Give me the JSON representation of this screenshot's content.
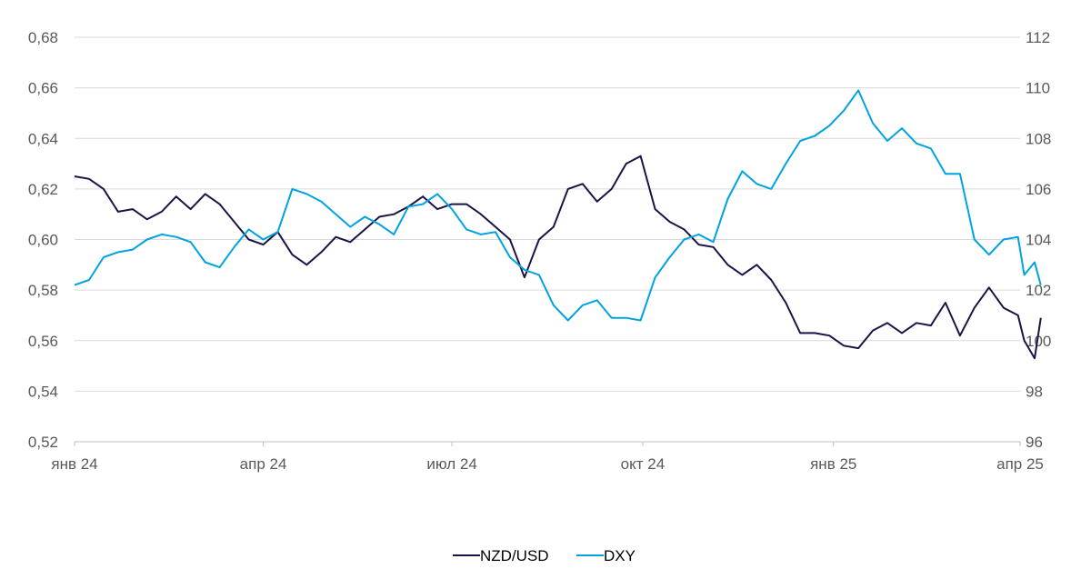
{
  "chart_data": {
    "type": "line",
    "title": "",
    "xlabel": "",
    "ylabel": "",
    "y2label": "",
    "grid": true,
    "legend_position": "bottom-center",
    "x_range": [
      "2024-01-01",
      "2025-04-01"
    ],
    "x_ticks": [
      {
        "date": "2024-01-01",
        "label": "янв 24"
      },
      {
        "date": "2024-04-01",
        "label": "апр 24"
      },
      {
        "date": "2024-07-01",
        "label": "июл 24"
      },
      {
        "date": "2024-10-01",
        "label": "окт 24"
      },
      {
        "date": "2025-01-01",
        "label": "янв 25"
      },
      {
        "date": "2025-04-01",
        "label": "апр 25"
      }
    ],
    "y_left": {
      "min": 0.52,
      "max": 0.68,
      "ticks": [
        "0,52",
        "0,54",
        "0,56",
        "0,58",
        "0,60",
        "0,62",
        "0,64",
        "0,66",
        "0,68"
      ]
    },
    "y_right": {
      "min": 96,
      "max": 112,
      "ticks": [
        "96",
        "98",
        "100",
        "102",
        "104",
        "106",
        "108",
        "110",
        "112"
      ]
    },
    "series": [
      {
        "name": "NZD/USD",
        "axis": "left",
        "color": "#1a1446",
        "points": [
          [
            "2024-01-01",
            0.625
          ],
          [
            "2024-01-08",
            0.624
          ],
          [
            "2024-01-15",
            0.62
          ],
          [
            "2024-01-22",
            0.611
          ],
          [
            "2024-01-29",
            0.612
          ],
          [
            "2024-02-05",
            0.608
          ],
          [
            "2024-02-12",
            0.611
          ],
          [
            "2024-02-19",
            0.617
          ],
          [
            "2024-02-26",
            0.612
          ],
          [
            "2024-03-04",
            0.618
          ],
          [
            "2024-03-11",
            0.614
          ],
          [
            "2024-03-18",
            0.607
          ],
          [
            "2024-03-25",
            0.6
          ],
          [
            "2024-04-01",
            0.598
          ],
          [
            "2024-04-08",
            0.603
          ],
          [
            "2024-04-15",
            0.594
          ],
          [
            "2024-04-22",
            0.59
          ],
          [
            "2024-04-29",
            0.595
          ],
          [
            "2024-05-06",
            0.601
          ],
          [
            "2024-05-13",
            0.599
          ],
          [
            "2024-05-20",
            0.604
          ],
          [
            "2024-05-27",
            0.609
          ],
          [
            "2024-06-03",
            0.61
          ],
          [
            "2024-06-10",
            0.613
          ],
          [
            "2024-06-17",
            0.617
          ],
          [
            "2024-06-24",
            0.612
          ],
          [
            "2024-07-01",
            0.614
          ],
          [
            "2024-07-08",
            0.614
          ],
          [
            "2024-07-15",
            0.61
          ],
          [
            "2024-07-22",
            0.605
          ],
          [
            "2024-07-29",
            0.6
          ],
          [
            "2024-08-05",
            0.585
          ],
          [
            "2024-08-12",
            0.6
          ],
          [
            "2024-08-19",
            0.605
          ],
          [
            "2024-08-26",
            0.62
          ],
          [
            "2024-09-02",
            0.622
          ],
          [
            "2024-09-09",
            0.615
          ],
          [
            "2024-09-16",
            0.62
          ],
          [
            "2024-09-23",
            0.63
          ],
          [
            "2024-09-30",
            0.633
          ],
          [
            "2024-10-07",
            0.612
          ],
          [
            "2024-10-14",
            0.607
          ],
          [
            "2024-10-21",
            0.604
          ],
          [
            "2024-10-28",
            0.598
          ],
          [
            "2024-11-04",
            0.597
          ],
          [
            "2024-11-11",
            0.59
          ],
          [
            "2024-11-18",
            0.586
          ],
          [
            "2024-11-25",
            0.59
          ],
          [
            "2024-12-02",
            0.584
          ],
          [
            "2024-12-09",
            0.575
          ],
          [
            "2024-12-16",
            0.563
          ],
          [
            "2024-12-23",
            0.563
          ],
          [
            "2024-12-30",
            0.562
          ],
          [
            "2025-01-06",
            0.558
          ],
          [
            "2025-01-13",
            0.557
          ],
          [
            "2025-01-20",
            0.564
          ],
          [
            "2025-01-27",
            0.567
          ],
          [
            "2025-02-03",
            0.563
          ],
          [
            "2025-02-10",
            0.567
          ],
          [
            "2025-02-17",
            0.566
          ],
          [
            "2025-02-24",
            0.575
          ],
          [
            "2025-03-03",
            0.562
          ],
          [
            "2025-03-10",
            0.573
          ],
          [
            "2025-03-17",
            0.581
          ],
          [
            "2025-03-24",
            0.573
          ],
          [
            "2025-03-31",
            0.57
          ],
          [
            "2025-04-03",
            0.56
          ],
          [
            "2025-04-08",
            0.553
          ],
          [
            "2025-04-11",
            0.569
          ]
        ]
      },
      {
        "name": "DXY",
        "axis": "right",
        "color": "#00a3e0",
        "points": [
          [
            "2024-01-01",
            102.2
          ],
          [
            "2024-01-08",
            102.4
          ],
          [
            "2024-01-15",
            103.3
          ],
          [
            "2024-01-22",
            103.5
          ],
          [
            "2024-01-29",
            103.6
          ],
          [
            "2024-02-05",
            104.0
          ],
          [
            "2024-02-12",
            104.2
          ],
          [
            "2024-02-19",
            104.1
          ],
          [
            "2024-02-26",
            103.9
          ],
          [
            "2024-03-04",
            103.1
          ],
          [
            "2024-03-11",
            102.9
          ],
          [
            "2024-03-18",
            103.7
          ],
          [
            "2024-03-25",
            104.4
          ],
          [
            "2024-04-01",
            104.0
          ],
          [
            "2024-04-08",
            104.3
          ],
          [
            "2024-04-15",
            106.0
          ],
          [
            "2024-04-22",
            105.8
          ],
          [
            "2024-04-29",
            105.5
          ],
          [
            "2024-05-06",
            105.0
          ],
          [
            "2024-05-13",
            104.5
          ],
          [
            "2024-05-20",
            104.9
          ],
          [
            "2024-05-27",
            104.6
          ],
          [
            "2024-06-03",
            104.2
          ],
          [
            "2024-06-10",
            105.3
          ],
          [
            "2024-06-17",
            105.4
          ],
          [
            "2024-06-24",
            105.8
          ],
          [
            "2024-07-01",
            105.2
          ],
          [
            "2024-07-08",
            104.4
          ],
          [
            "2024-07-15",
            104.2
          ],
          [
            "2024-07-22",
            104.3
          ],
          [
            "2024-07-29",
            103.3
          ],
          [
            "2024-08-05",
            102.8
          ],
          [
            "2024-08-12",
            102.6
          ],
          [
            "2024-08-19",
            101.4
          ],
          [
            "2024-08-26",
            100.8
          ],
          [
            "2024-09-02",
            101.4
          ],
          [
            "2024-09-09",
            101.6
          ],
          [
            "2024-09-16",
            100.9
          ],
          [
            "2024-09-23",
            100.9
          ],
          [
            "2024-09-30",
            100.8
          ],
          [
            "2024-10-07",
            102.5
          ],
          [
            "2024-10-14",
            103.3
          ],
          [
            "2024-10-21",
            104.0
          ],
          [
            "2024-10-28",
            104.2
          ],
          [
            "2024-11-04",
            103.9
          ],
          [
            "2024-11-11",
            105.6
          ],
          [
            "2024-11-18",
            106.7
          ],
          [
            "2024-11-25",
            106.2
          ],
          [
            "2024-12-02",
            106.0
          ],
          [
            "2024-12-09",
            107.0
          ],
          [
            "2024-12-16",
            107.9
          ],
          [
            "2024-12-23",
            108.1
          ],
          [
            "2024-12-30",
            108.5
          ],
          [
            "2025-01-06",
            109.1
          ],
          [
            "2025-01-13",
            109.9
          ],
          [
            "2025-01-20",
            108.6
          ],
          [
            "2025-01-27",
            107.9
          ],
          [
            "2025-02-03",
            108.4
          ],
          [
            "2025-02-10",
            107.8
          ],
          [
            "2025-02-17",
            107.6
          ],
          [
            "2025-02-24",
            106.6
          ],
          [
            "2025-03-03",
            106.6
          ],
          [
            "2025-03-10",
            104.0
          ],
          [
            "2025-03-17",
            103.4
          ],
          [
            "2025-03-24",
            104.0
          ],
          [
            "2025-03-31",
            104.1
          ],
          [
            "2025-04-03",
            102.6
          ],
          [
            "2025-04-08",
            103.1
          ],
          [
            "2025-04-11",
            102.2
          ]
        ]
      }
    ]
  }
}
